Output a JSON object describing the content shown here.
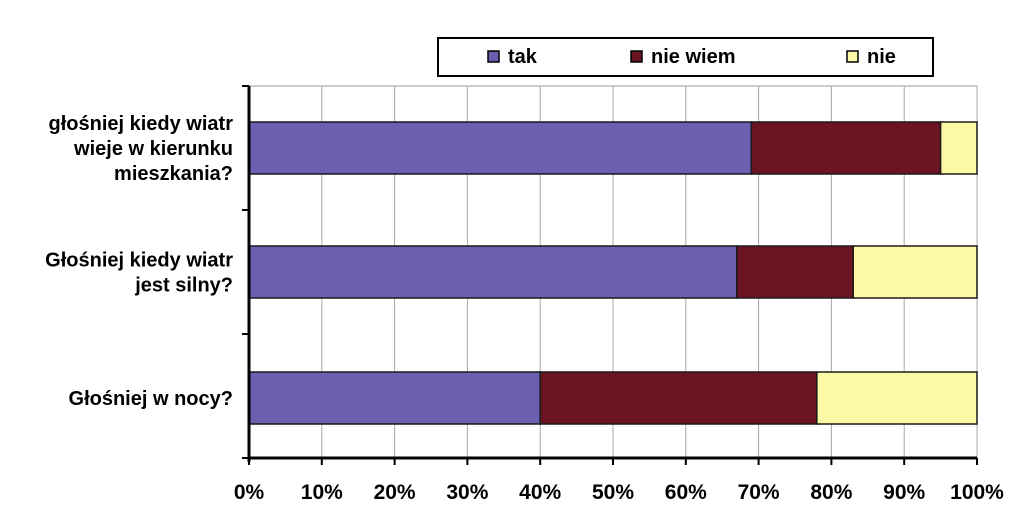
{
  "chart_data": {
    "type": "bar",
    "orientation": "horizontal",
    "stacked": "percent",
    "categories": [
      "głośniej kiedy wiatr wieje w kierunku mieszkania?",
      "Głośniej kiedy wiatr jest silny?",
      "Głośniej w nocy?"
    ],
    "category_lines": [
      [
        "głośniej kiedy wiatr",
        "wieje w kierunku",
        "mieszkania?"
      ],
      [
        "Głośniej kiedy wiatr",
        "jest silny?"
      ],
      [
        "Głośniej w nocy?"
      ]
    ],
    "series": [
      {
        "name": "tak",
        "color": "#6b5fb0",
        "values": [
          69,
          67,
          40
        ]
      },
      {
        "name": "nie wiem",
        "color": "#6b1522",
        "values": [
          26,
          16,
          38
        ]
      },
      {
        "name": "nie",
        "color": "#fdf8a6",
        "values": [
          5,
          17,
          22
        ]
      }
    ],
    "xlim": [
      0,
      100
    ],
    "x_ticks": [
      "0%",
      "10%",
      "20%",
      "30%",
      "40%",
      "50%",
      "60%",
      "70%",
      "80%",
      "90%",
      "100%"
    ],
    "grid": true,
    "legend_position": "top"
  }
}
